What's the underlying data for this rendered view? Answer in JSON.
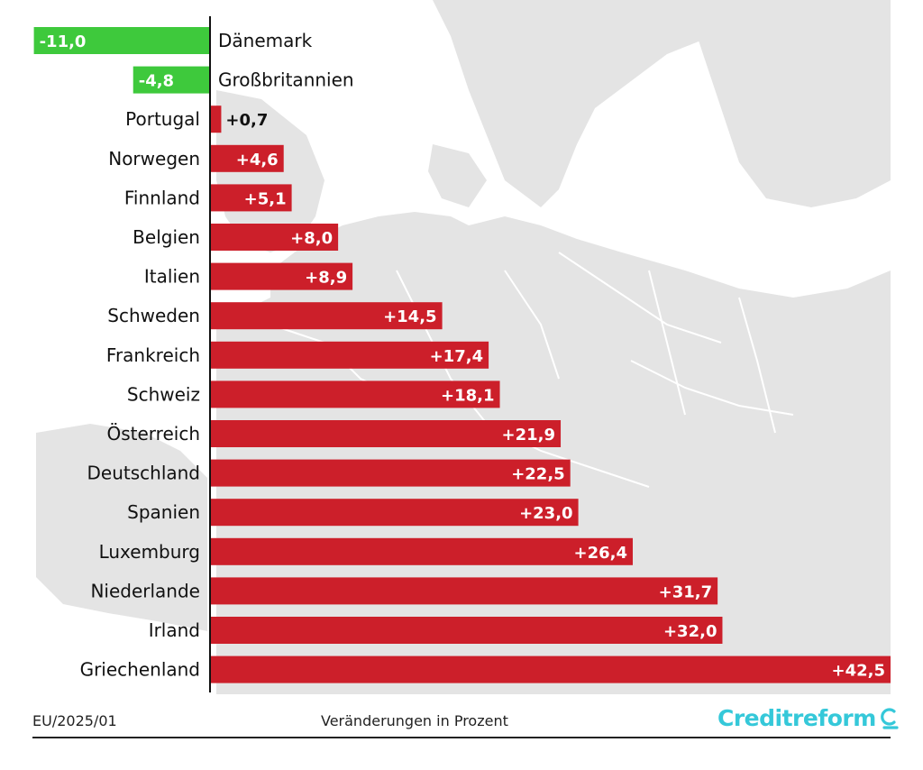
{
  "colors": {
    "negative_bar": "#3ec93c",
    "positive_bar": "#cc1f2a",
    "map_land": "#e4e4e4",
    "map_border": "#ffffff",
    "axis": "#111111",
    "brand": "#35c8d9"
  },
  "chart_data": {
    "type": "bar",
    "orientation": "horizontal",
    "categories": [
      "Dänemark",
      "Großbritannien",
      "Portugal",
      "Norwegen",
      "Finnland",
      "Belgien",
      "Italien",
      "Schweden",
      "Frankreich",
      "Schweiz",
      "Österreich",
      "Deutschland",
      "Spanien",
      "Luxemburg",
      "Niederlande",
      "Irland",
      "Griechenland"
    ],
    "values": [
      -11.0,
      -4.8,
      0.7,
      4.6,
      5.1,
      8.0,
      8.9,
      14.5,
      17.4,
      18.1,
      21.9,
      22.5,
      23.0,
      26.4,
      31.7,
      32.0,
      42.5
    ],
    "value_labels": [
      "-11,0",
      "-4,8",
      "+0,7",
      "+4,6",
      "+5,1",
      "+8,0",
      "+8,9",
      "+14,5",
      "+17,4",
      "+18,1",
      "+21,9",
      "+22,5",
      "+23,0",
      "+26,4",
      "+31,7",
      "+32,0",
      "+42,5"
    ],
    "xlim": [
      -11.0,
      42.5
    ],
    "grid": false,
    "background": "map of Europe"
  },
  "footer": {
    "code": "EU/2025/01",
    "caption": "Veränderungen in Prozent",
    "logo": "Creditreform"
  }
}
